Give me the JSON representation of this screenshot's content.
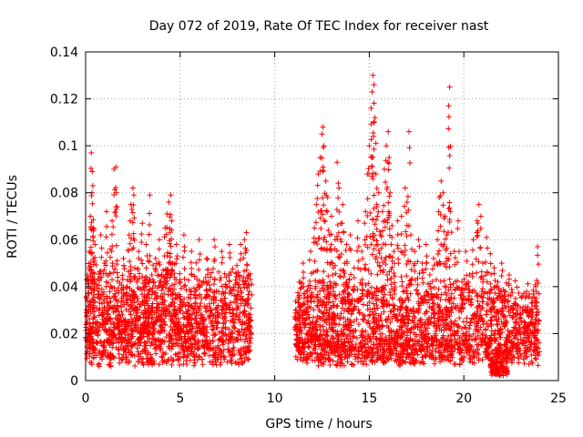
{
  "chart_data": {
    "type": "scatter",
    "title": "Day 072 of 2019, Rate Of TEC Index for receiver nast",
    "xlabel": "GPS time / hours",
    "ylabel": "ROTI / TECUs",
    "xlim": [
      0,
      25
    ],
    "ylim": [
      0,
      0.14
    ],
    "xticks": [
      0,
      5,
      10,
      15,
      20,
      25
    ],
    "xtick_labels": [
      "0",
      "5",
      "10",
      "15",
      "20",
      "25"
    ],
    "yticks": [
      0,
      0.02,
      0.04,
      0.06,
      0.08,
      0.1,
      0.12,
      0.14
    ],
    "ytick_labels": [
      "0",
      "0.02",
      "0.04",
      "0.06",
      "0.08",
      "0.1",
      "0.12",
      "0.14"
    ],
    "grid": true,
    "marker": "plus",
    "color": "#ff0000",
    "series": [
      {
        "points": [
          [
            0.05,
            0.03
          ],
          [
            0.1,
            0.045
          ],
          [
            0.15,
            0.02
          ],
          [
            0.2,
            0.055
          ],
          [
            0.25,
            0.07
          ],
          [
            0.3,
            0.097
          ],
          [
            0.35,
            0.089
          ],
          [
            0.38,
            0.083
          ],
          [
            0.4,
            0.065
          ],
          [
            0.45,
            0.04
          ],
          [
            0.5,
            0.058
          ],
          [
            0.6,
            0.025
          ],
          [
            0.7,
            0.038
          ],
          [
            0.8,
            0.062
          ],
          [
            0.9,
            0.03
          ],
          [
            1.0,
            0.05
          ],
          [
            1.1,
            0.072
          ],
          [
            1.2,
            0.033
          ],
          [
            1.3,
            0.056
          ],
          [
            1.4,
            0.068
          ],
          [
            1.5,
            0.09
          ],
          [
            1.6,
            0.091
          ],
          [
            1.62,
            0.08
          ],
          [
            1.7,
            0.044
          ],
          [
            1.8,
            0.028
          ],
          [
            1.9,
            0.035
          ],
          [
            2.0,
            0.052
          ],
          [
            2.1,
            0.026
          ],
          [
            2.2,
            0.04
          ],
          [
            2.3,
            0.062
          ],
          [
            2.4,
            0.075
          ],
          [
            2.5,
            0.082
          ],
          [
            2.55,
            0.079
          ],
          [
            2.6,
            0.048
          ],
          [
            2.7,
            0.03
          ],
          [
            2.8,
            0.055
          ],
          [
            2.9,
            0.021
          ],
          [
            3.0,
            0.067
          ],
          [
            3.1,
            0.04
          ],
          [
            3.2,
            0.058
          ],
          [
            3.3,
            0.032
          ],
          [
            3.4,
            0.079
          ],
          [
            3.5,
            0.045
          ],
          [
            3.6,
            0.025
          ],
          [
            3.7,
            0.052
          ],
          [
            3.8,
            0.036
          ],
          [
            3.9,
            0.06
          ],
          [
            4.0,
            0.028
          ],
          [
            4.1,
            0.047
          ],
          [
            4.2,
            0.065
          ],
          [
            4.3,
            0.071
          ],
          [
            4.4,
            0.076
          ],
          [
            4.5,
            0.079
          ],
          [
            4.55,
            0.068
          ],
          [
            4.6,
            0.05
          ],
          [
            4.7,
            0.033
          ],
          [
            4.8,
            0.058
          ],
          [
            4.9,
            0.024
          ],
          [
            5.0,
            0.042
          ],
          [
            5.2,
            0.062
          ],
          [
            5.4,
            0.03
          ],
          [
            5.6,
            0.055
          ],
          [
            5.8,
            0.038
          ],
          [
            6.0,
            0.06
          ],
          [
            6.2,
            0.027
          ],
          [
            6.4,
            0.052
          ],
          [
            6.6,
            0.044
          ],
          [
            6.8,
            0.06
          ],
          [
            7.0,
            0.032
          ],
          [
            7.2,
            0.055
          ],
          [
            7.4,
            0.041
          ],
          [
            7.6,
            0.058
          ],
          [
            7.8,
            0.03
          ],
          [
            8.0,
            0.049
          ],
          [
            8.2,
            0.058
          ],
          [
            8.4,
            0.06
          ],
          [
            8.5,
            0.063
          ],
          [
            8.6,
            0.045
          ],
          [
            8.7,
            0.028
          ],
          [
            11.1,
            0.03
          ],
          [
            11.3,
            0.042
          ],
          [
            11.5,
            0.05
          ],
          [
            11.7,
            0.038
          ],
          [
            11.9,
            0.055
          ],
          [
            12.1,
            0.065
          ],
          [
            12.2,
            0.075
          ],
          [
            12.3,
            0.088
          ],
          [
            12.4,
            0.095
          ],
          [
            12.5,
            0.105
          ],
          [
            12.55,
            0.108
          ],
          [
            12.6,
            0.1
          ],
          [
            12.7,
            0.085
          ],
          [
            12.8,
            0.078
          ],
          [
            12.9,
            0.062
          ],
          [
            13.0,
            0.07
          ],
          [
            13.1,
            0.048
          ],
          [
            13.2,
            0.06
          ],
          [
            13.3,
            0.093
          ],
          [
            13.4,
            0.082
          ],
          [
            13.5,
            0.067
          ],
          [
            13.6,
            0.075
          ],
          [
            13.7,
            0.05
          ],
          [
            13.8,
            0.058
          ],
          [
            13.9,
            0.04
          ],
          [
            14.0,
            0.062
          ],
          [
            14.2,
            0.048
          ],
          [
            14.4,
            0.068
          ],
          [
            14.6,
            0.055
          ],
          [
            14.8,
            0.072
          ],
          [
            14.9,
            0.088
          ],
          [
            15.0,
            0.1
          ],
          [
            15.1,
            0.116
          ],
          [
            15.15,
            0.123
          ],
          [
            15.2,
            0.13
          ],
          [
            15.25,
            0.126
          ],
          [
            15.3,
            0.112
          ],
          [
            15.35,
            0.088
          ],
          [
            15.4,
            0.075
          ],
          [
            15.5,
            0.08
          ],
          [
            15.6,
            0.062
          ],
          [
            15.7,
            0.072
          ],
          [
            15.8,
            0.09
          ],
          [
            15.9,
            0.1
          ],
          [
            16.0,
            0.106
          ],
          [
            16.05,
            0.095
          ],
          [
            16.1,
            0.08
          ],
          [
            16.2,
            0.066
          ],
          [
            16.3,
            0.055
          ],
          [
            16.5,
            0.068
          ],
          [
            16.7,
            0.07
          ],
          [
            16.9,
            0.082
          ],
          [
            17.0,
            0.076
          ],
          [
            17.1,
            0.106
          ],
          [
            17.2,
            0.062
          ],
          [
            17.4,
            0.055
          ],
          [
            17.6,
            0.06
          ],
          [
            17.8,
            0.05
          ],
          [
            18.0,
            0.058
          ],
          [
            18.2,
            0.045
          ],
          [
            18.4,
            0.052
          ],
          [
            18.6,
            0.06
          ],
          [
            18.7,
            0.078
          ],
          [
            18.8,
            0.085
          ],
          [
            18.9,
            0.08
          ],
          [
            19.0,
            0.07
          ],
          [
            19.1,
            0.062
          ],
          [
            19.2,
            0.117
          ],
          [
            19.25,
            0.125
          ],
          [
            19.3,
            0.072
          ],
          [
            19.5,
            0.055
          ],
          [
            19.7,
            0.068
          ],
          [
            19.9,
            0.042
          ],
          [
            20.1,
            0.055
          ],
          [
            20.3,
            0.045
          ],
          [
            20.5,
            0.06
          ],
          [
            20.7,
            0.068
          ],
          [
            20.8,
            0.075
          ],
          [
            20.9,
            0.07
          ],
          [
            21.0,
            0.05
          ],
          [
            21.2,
            0.061
          ],
          [
            21.4,
            0.054
          ],
          [
            21.6,
            0.048
          ],
          [
            21.8,
            0.042
          ],
          [
            22.0,
            0.05
          ],
          [
            22.2,
            0.038
          ],
          [
            22.4,
            0.045
          ],
          [
            22.6,
            0.032
          ],
          [
            22.8,
            0.03
          ],
          [
            23.0,
            0.028
          ],
          [
            23.2,
            0.025
          ],
          [
            23.4,
            0.03
          ],
          [
            23.6,
            0.035
          ],
          [
            23.8,
            0.04
          ],
          [
            23.9,
            0.057
          ]
        ],
        "bands": [
          {
            "x": [
              0.0,
              8.8
            ],
            "y": [
              0.006,
              0.04
            ]
          },
          {
            "x": [
              11.1,
              24.0
            ],
            "y": [
              0.006,
              0.034
            ]
          },
          {
            "x": [
              21.4,
              22.3
            ],
            "y": [
              0.002,
              0.012
            ]
          }
        ]
      }
    ]
  }
}
